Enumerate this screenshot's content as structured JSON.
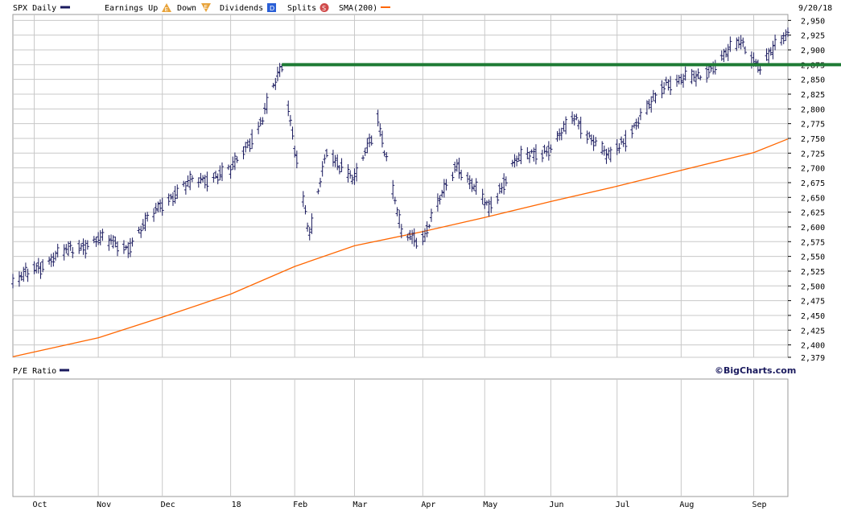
{
  "legend": {
    "symbol": "SPX Daily",
    "earnings": "Earnings Up",
    "down": "Down",
    "dividends": "Dividends",
    "splits": "Splits",
    "sma": "SMA(200)",
    "date": "9/20/18",
    "earnings_icon": "E",
    "down_icon": "E",
    "dividends_icon": "D",
    "splits_icon": "S"
  },
  "lower_panel": {
    "label": "P/E Ratio"
  },
  "watermark": "©BigCharts.com",
  "colors": {
    "price_bars": "#1a1a5e",
    "sma": "#ff6600",
    "resistance": "#1e7b34",
    "grid": "#c8c8c8",
    "earnings_icon": "#e8a33a",
    "dividends_icon": "#2a5fd6",
    "splits_icon": "#d04a4a"
  },
  "chart_data": {
    "type": "line",
    "title": "SPX Daily",
    "y_ticks": [
      "2,950",
      "2,925",
      "2,900",
      "2,875",
      "2,850",
      "2,825",
      "2,800",
      "2,775",
      "2,750",
      "2,725",
      "2,700",
      "2,675",
      "2,650",
      "2,625",
      "2,600",
      "2,575",
      "2,550",
      "2,525",
      "2,500",
      "2,475",
      "2,450",
      "2,425",
      "2,400",
      "2,379"
    ],
    "ylim": [
      2379,
      2960
    ],
    "x_ticks": [
      "Oct",
      "Nov",
      "Dec",
      "18",
      "Feb",
      "Mar",
      "Apr",
      "May",
      "Jun",
      "Jul",
      "Aug",
      "Sep"
    ],
    "x_tick_dates": [
      "2017-10-02",
      "2017-11-01",
      "2017-12-01",
      "2018-01-02",
      "2018-02-01",
      "2018-03-01",
      "2018-04-02",
      "2018-05-01",
      "2018-06-01",
      "2018-07-02",
      "2018-08-01",
      "2018-09-04"
    ],
    "xlim": [
      "2017-09-22",
      "2018-09-20"
    ],
    "series": [
      {
        "name": "SPX Daily",
        "dates": [
          "2017-09-22",
          "2017-10-02",
          "2017-10-16",
          "2017-11-01",
          "2017-11-15",
          "2017-12-01",
          "2017-12-15",
          "2018-01-02",
          "2018-01-16",
          "2018-01-26",
          "2018-02-08",
          "2018-02-16",
          "2018-03-01",
          "2018-03-12",
          "2018-03-23",
          "2018-04-02",
          "2018-04-18",
          "2018-05-03",
          "2018-05-15",
          "2018-06-01",
          "2018-06-12",
          "2018-06-28",
          "2018-07-16",
          "2018-07-25",
          "2018-08-09",
          "2018-08-29",
          "2018-09-07",
          "2018-09-20"
        ],
        "values": [
          2502,
          2530,
          2557,
          2579,
          2566,
          2642,
          2676,
          2695,
          2776,
          2872,
          2581,
          2732,
          2677,
          2786,
          2588,
          2581,
          2708,
          2630,
          2711,
          2735,
          2786,
          2716,
          2798,
          2846,
          2853,
          2914,
          2871,
          2930
        ]
      },
      {
        "name": "SMA(200)",
        "dates": [
          "2017-09-22",
          "2017-11-01",
          "2017-12-01",
          "2018-01-02",
          "2018-02-01",
          "2018-03-01",
          "2018-04-02",
          "2018-05-01",
          "2018-06-01",
          "2018-07-02",
          "2018-08-01",
          "2018-09-04",
          "2018-09-20"
        ],
        "values": [
          2380,
          2412,
          2447,
          2486,
          2533,
          2568,
          2592,
          2616,
          2643,
          2669,
          2696,
          2726,
          2749
        ]
      }
    ],
    "annotations": [
      {
        "type": "horizontal-line",
        "value": 2875,
        "from": "2018-01-26",
        "to": "2018-09-20"
      }
    ],
    "grid": true,
    "legend_position": "top"
  }
}
